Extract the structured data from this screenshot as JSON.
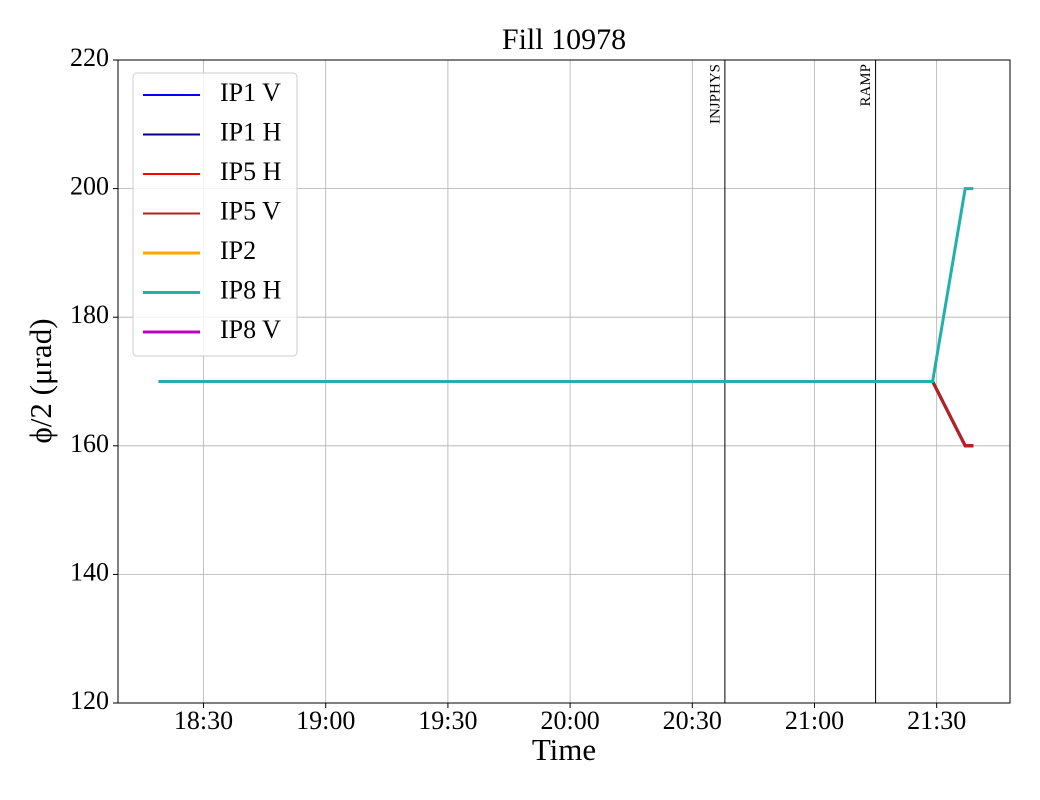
{
  "chart_data": {
    "type": "line",
    "title": "Fill 10978",
    "x_label": "Time",
    "y_label": "ϕ/2 (μrad)",
    "x": [
      "18:19",
      "21:29",
      "21:37",
      "21:39"
    ],
    "series": [
      {
        "name": "IP1 V",
        "color": "#0000ff",
        "values": [
          170,
          170,
          160,
          160
        ]
      },
      {
        "name": "IP1 H",
        "color": "#00008b",
        "values": [
          170,
          170,
          160,
          160
        ]
      },
      {
        "name": "IP5 H",
        "color": "#ff0000",
        "values": [
          170,
          170,
          160,
          160
        ]
      },
      {
        "name": "IP5 V",
        "color": "#b22222",
        "values": [
          170,
          170,
          160,
          160
        ]
      },
      {
        "name": "IP2",
        "color": "#ffa500",
        "values": [
          null,
          null,
          null,
          null
        ]
      },
      {
        "name": "IP8 H",
        "color": "#20b2aa",
        "values": [
          170,
          170,
          200,
          200
        ]
      },
      {
        "name": "IP8 V",
        "color": "#c000c0",
        "values": [
          null,
          null,
          null,
          null
        ]
      }
    ],
    "xlim": [
      "18:09",
      "21:48"
    ],
    "xticks": [
      "18:30",
      "19:00",
      "19:30",
      "20:00",
      "20:30",
      "21:00",
      "21:30"
    ],
    "ylim": [
      120,
      220
    ],
    "yticks": [
      120,
      140,
      160,
      180,
      200,
      220
    ],
    "grid": true,
    "legend": "upper left",
    "markers": [
      {
        "x": "20:38",
        "label": "INJPHYS"
      },
      {
        "x": "21:15",
        "label": "RAMP"
      }
    ]
  }
}
